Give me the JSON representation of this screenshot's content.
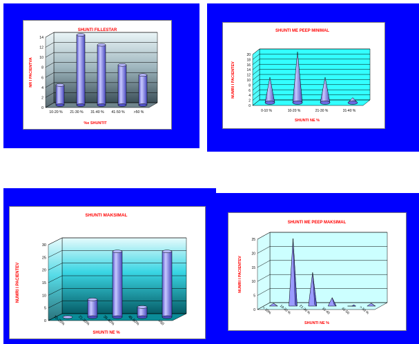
{
  "colors": {
    "panel": "#0000ff",
    "title": "#ff0000",
    "bar": "#8f8fff",
    "cyan": "#33ffff"
  },
  "chart_data": [
    {
      "type": "bar",
      "title": "SHUNTI FILLESTAR",
      "xlabel": "%e SHUNTIT",
      "ylabel": "NR I PACIENTVA",
      "categories": [
        "10-20 %",
        "21-30 %",
        "31-40 %",
        "41-50 %",
        ">50 %"
      ],
      "values": [
        4,
        14,
        12,
        8,
        6
      ],
      "ylim": [
        0,
        14
      ],
      "yticks": [
        "0",
        "2",
        "4",
        "6",
        "8",
        "10",
        "12",
        "14"
      ],
      "grid": true,
      "shape": "3d-cylinder",
      "floor": "gradient-gray"
    },
    {
      "type": "bar",
      "title": "SHUNTI ME PEEP MINIMAL",
      "xlabel": "SHUNTI NE %",
      "ylabel": "NUMRI I PACIENTEV",
      "categories": [
        "0-10 %",
        "10-20 %",
        "21-30 %",
        "31-40 %"
      ],
      "values": [
        10,
        20,
        10,
        2
      ],
      "ylim": [
        0,
        20
      ],
      "yticks": [
        "0",
        "2",
        "4",
        "6",
        "8",
        "10",
        "12",
        "14",
        "16",
        "18",
        "20"
      ],
      "grid": true,
      "shape": "3d-cone",
      "floor": "cyan"
    },
    {
      "type": "bar",
      "title": "SHUNTI MAKSIMAL",
      "xlabel": "SHUNTI NE %",
      "ylabel": "NUMRI I PACIENTEV",
      "categories": [
        "10-20%",
        "21-30%",
        "35-40%",
        "45-50%",
        ">50"
      ],
      "values": [
        0,
        7,
        26,
        4,
        26
      ],
      "ylim": [
        0,
        30
      ],
      "yticks": [
        "0",
        "5",
        "10",
        "15",
        "20",
        "25",
        "30"
      ],
      "grid": true,
      "shape": "3d-cylinder",
      "floor": "gradient-teal"
    },
    {
      "type": "bar",
      "title": "SHUNTI ME PEEP MAKSIMAL",
      "xlabel": "SHUNTI NE %",
      "ylabel": "NUMRI I PACIENTEV",
      "categories": [
        "< 10%",
        "10-20 %",
        "21-30 %",
        "31-40",
        "41-50",
        "> 50 %"
      ],
      "values": [
        1,
        24,
        12,
        3,
        0,
        1
      ],
      "ylim": [
        0,
        25
      ],
      "yticks": [
        "0",
        "5",
        "10",
        "15",
        "20",
        "25"
      ],
      "grid": true,
      "shape": "3d-pyramid",
      "floor": "light-cyan"
    }
  ]
}
